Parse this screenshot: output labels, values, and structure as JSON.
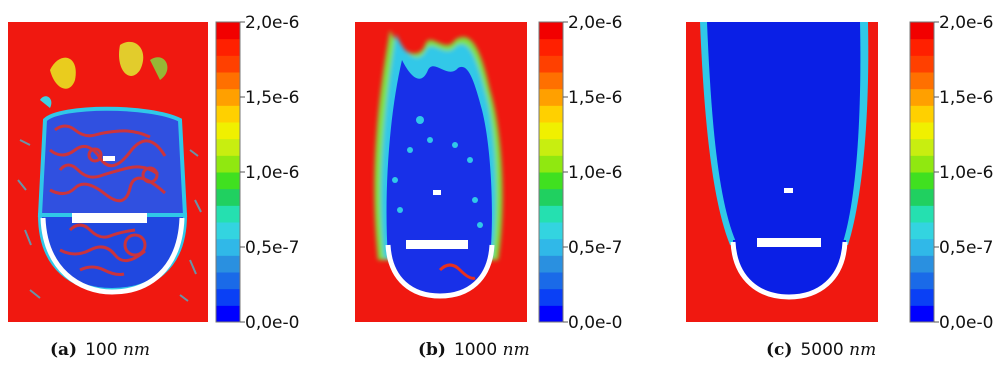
{
  "panels": [
    {
      "label": "(a)",
      "value": "100",
      "unit": "nm"
    },
    {
      "label": "(b)",
      "value": "1000",
      "unit": "nm"
    },
    {
      "label": "(c)",
      "value": "5000",
      "unit": "nm"
    }
  ],
  "colorbar": {
    "ticks": [
      "2,0e-6",
      "1,5e-6",
      "1,0e-6",
      "0,5e-7",
      "0,0e-0"
    ],
    "colors": [
      "#0000ff",
      "#0a40f5",
      "#1a6ae8",
      "#2a90e0",
      "#30b8e8",
      "#33d4e0",
      "#25e0b0",
      "#20d060",
      "#40e020",
      "#90e810",
      "#c8ee10",
      "#f0f000",
      "#ffd000",
      "#ffa000",
      "#ff7000",
      "#ff4000",
      "#ff2000",
      "#f20000"
    ]
  },
  "colors": {
    "low": "#0a1fe6",
    "high": "#f01810",
    "mid": "#30c8e8"
  }
}
